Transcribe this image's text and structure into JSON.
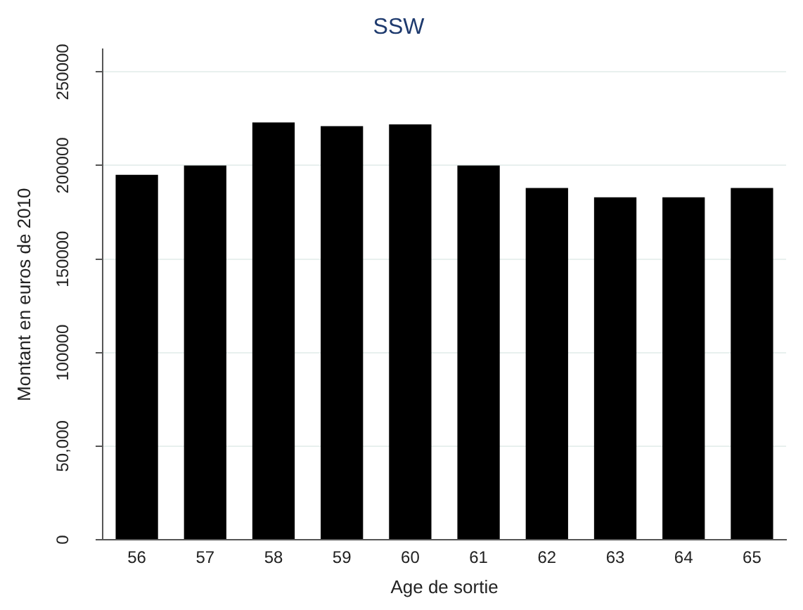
{
  "chart_data": {
    "type": "bar",
    "title": "SSW",
    "xlabel": "Age de sortie",
    "ylabel": "Montant en euros de 2010",
    "categories": [
      "56",
      "57",
      "58",
      "59",
      "60",
      "61",
      "62",
      "63",
      "64",
      "65"
    ],
    "values": [
      195000,
      200000,
      223000,
      221000,
      222000,
      200000,
      188000,
      183000,
      183000,
      188000
    ],
    "color": "#000000",
    "ylim": [
      0,
      262000
    ],
    "yticks": [
      0,
      {
        "value": 50000,
        "label": "50,000"
      },
      100000,
      150000,
      200000,
      250000
    ],
    "grid": "y",
    "legend": false
  }
}
